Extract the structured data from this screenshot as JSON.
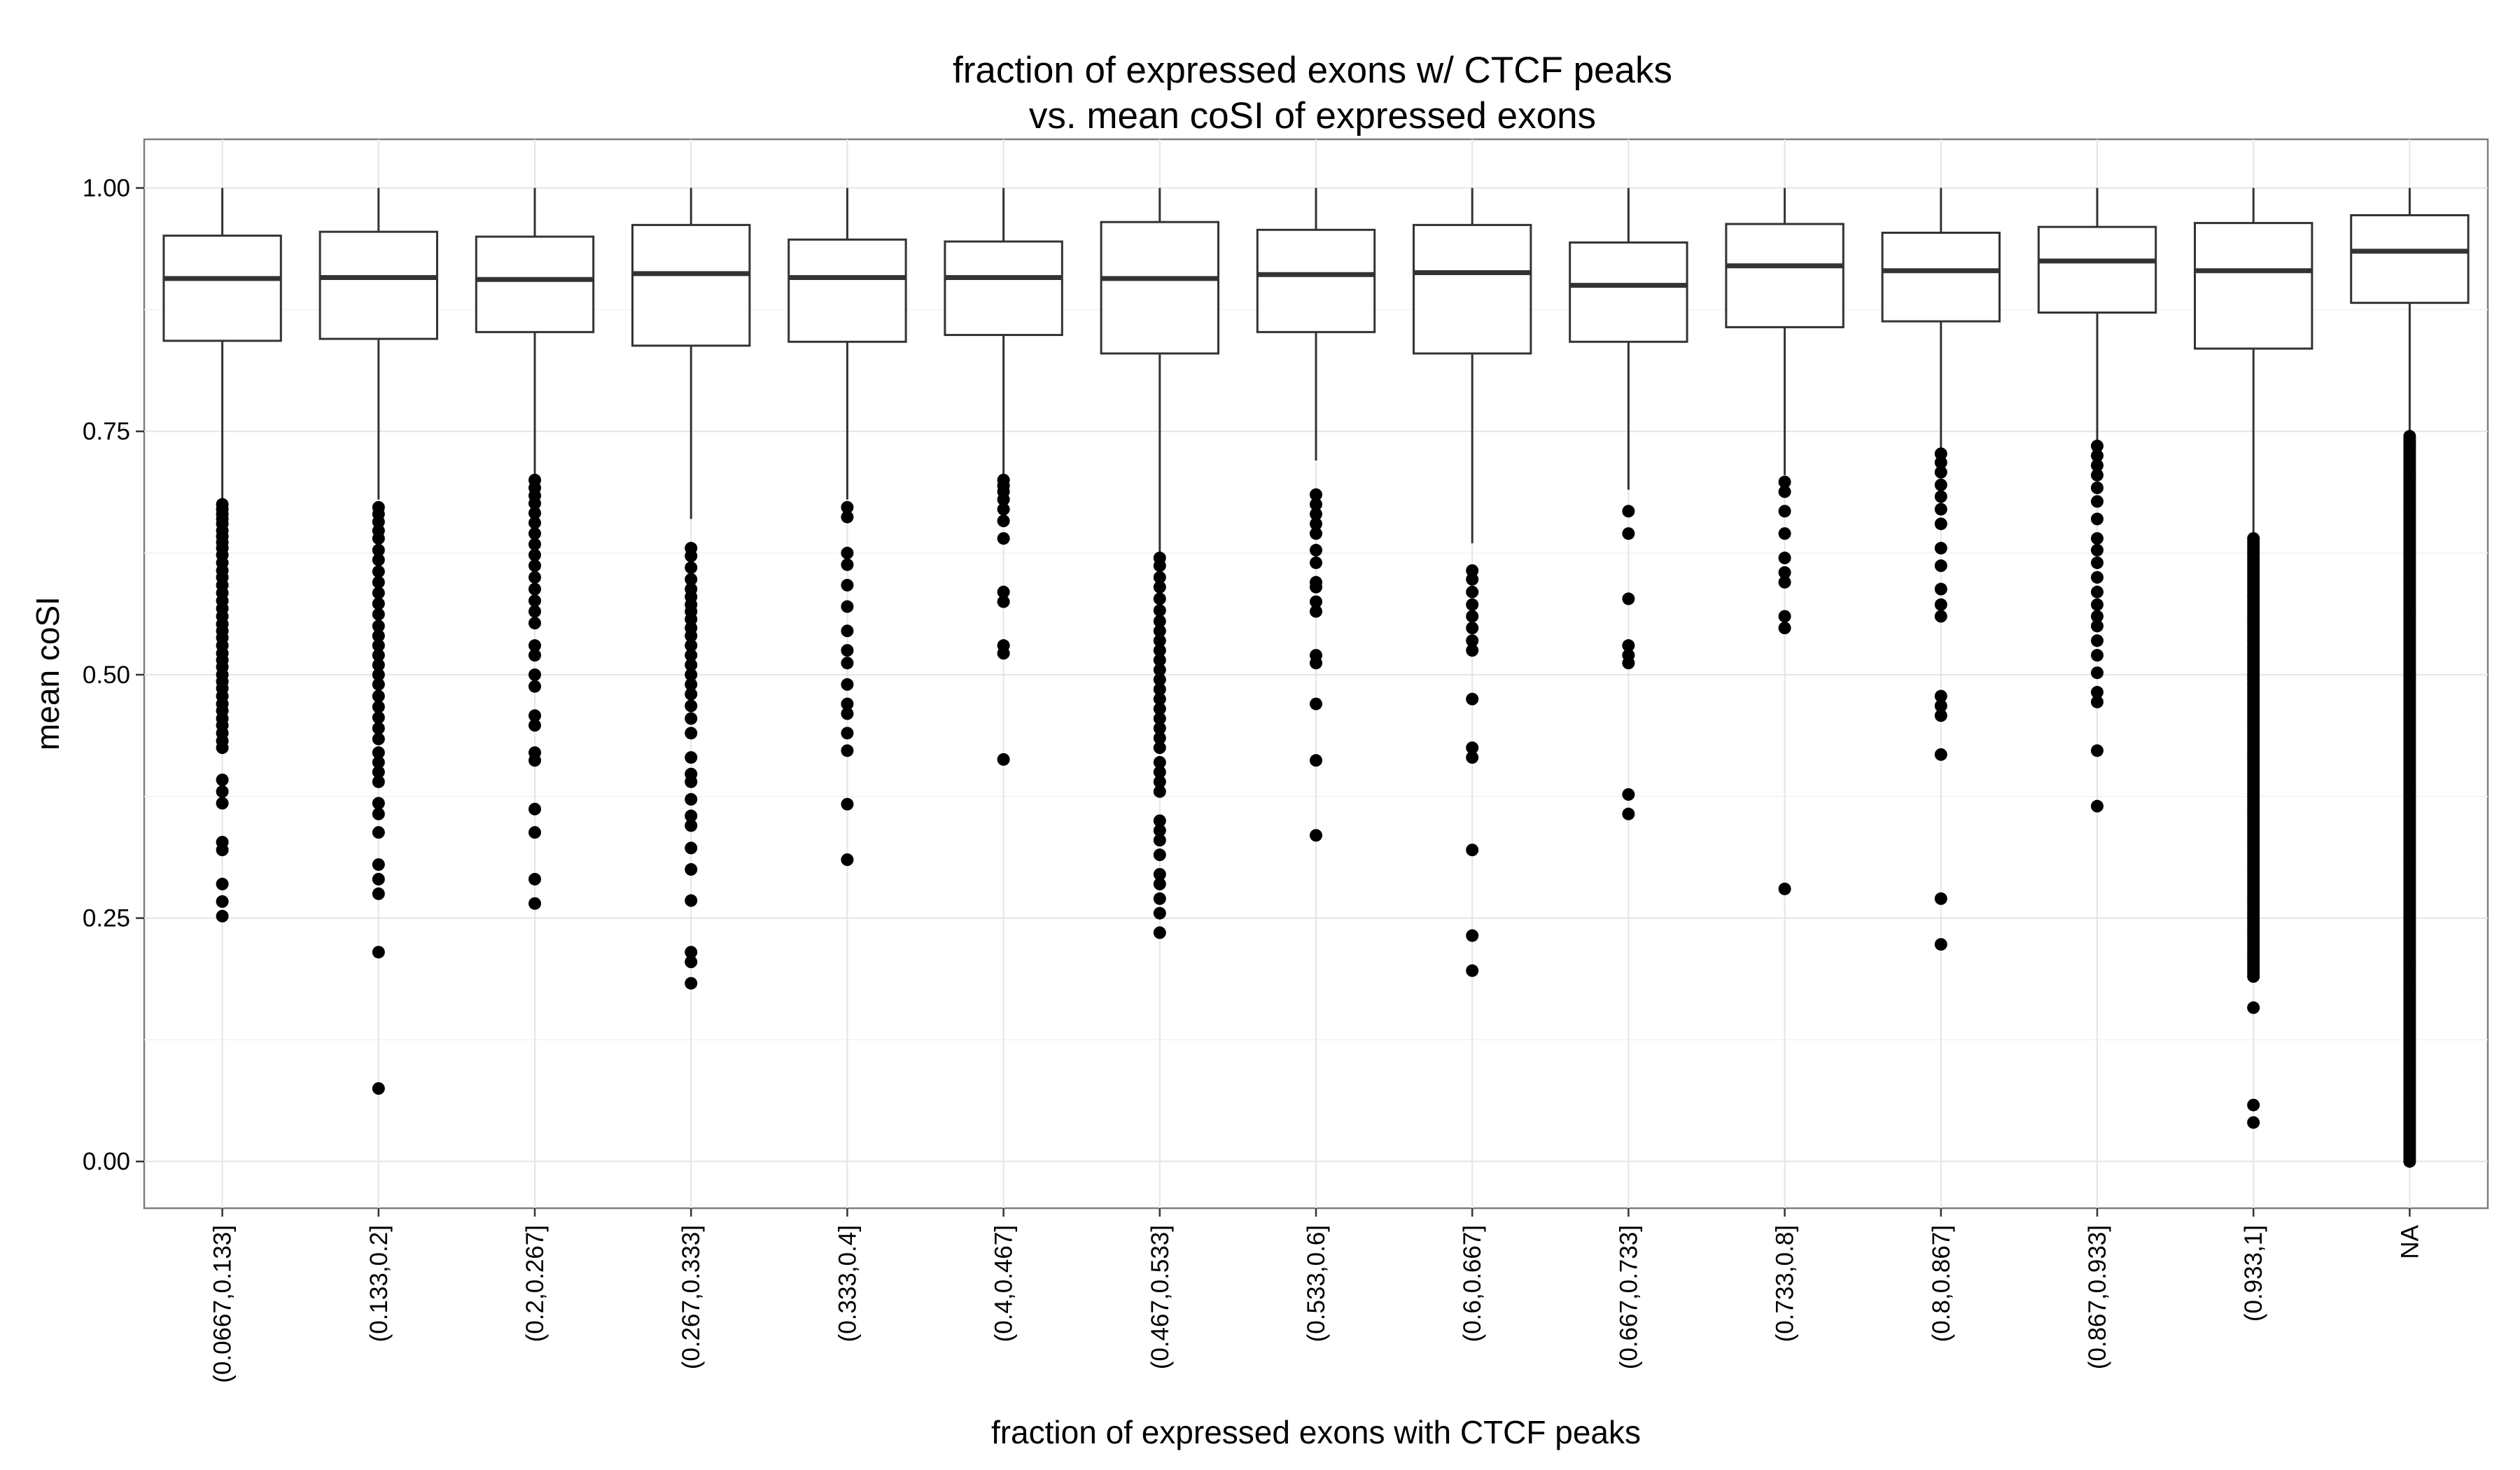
{
  "chart_data": {
    "type": "box",
    "title_line1": "fraction of expressed exons w/ CTCF peaks",
    "title_line2": "vs. mean coSI of expressed exons",
    "xlabel": "fraction of expressed exons with CTCF peaks",
    "ylabel": "mean coSI",
    "ylim": [
      -0.048,
      1.05
    ],
    "yticks": [
      {
        "value": 0.0,
        "label": "0.00"
      },
      {
        "value": 0.25,
        "label": "0.25"
      },
      {
        "value": 0.5,
        "label": "0.50"
      },
      {
        "value": 0.75,
        "label": "0.75"
      },
      {
        "value": 1.0,
        "label": "1.00"
      }
    ],
    "grid": true,
    "series": [
      {
        "category": "(0.0667,0.133]",
        "whisker_low": 0.677,
        "q1": 0.843,
        "median": 0.907,
        "q3": 0.951,
        "whisker_high": 1.0,
        "outliers": [
          0.675,
          0.67,
          0.665,
          0.66,
          0.655,
          0.648,
          0.642,
          0.636,
          0.63,
          0.623,
          0.615,
          0.607,
          0.6,
          0.592,
          0.584,
          0.576,
          0.568,
          0.56,
          0.552,
          0.545,
          0.538,
          0.53,
          0.522,
          0.515,
          0.508,
          0.5,
          0.493,
          0.486,
          0.478,
          0.47,
          0.463,
          0.455,
          0.448,
          0.44,
          0.432,
          0.425,
          0.392,
          0.38,
          0.368,
          0.328,
          0.32,
          0.285,
          0.267,
          0.252
        ]
      },
      {
        "category": "(0.133,0.2]",
        "whisker_low": 0.68,
        "q1": 0.845,
        "median": 0.908,
        "q3": 0.955,
        "whisker_high": 1.0,
        "outliers": [
          0.672,
          0.665,
          0.657,
          0.648,
          0.64,
          0.628,
          0.618,
          0.606,
          0.595,
          0.584,
          0.573,
          0.562,
          0.55,
          0.54,
          0.53,
          0.52,
          0.51,
          0.5,
          0.49,
          0.478,
          0.467,
          0.456,
          0.445,
          0.434,
          0.42,
          0.41,
          0.4,
          0.39,
          0.368,
          0.357,
          0.338,
          0.305,
          0.29,
          0.275,
          0.215,
          0.075
        ]
      },
      {
        "category": "(0.2,0.267]",
        "whisker_low": 0.705,
        "q1": 0.852,
        "median": 0.906,
        "q3": 0.95,
        "whisker_high": 1.0,
        "outliers": [
          0.7,
          0.692,
          0.684,
          0.676,
          0.666,
          0.656,
          0.645,
          0.634,
          0.623,
          0.612,
          0.6,
          0.588,
          0.576,
          0.565,
          0.553,
          0.53,
          0.52,
          0.5,
          0.488,
          0.458,
          0.448,
          0.42,
          0.412,
          0.362,
          0.338,
          0.29,
          0.265
        ]
      },
      {
        "category": "(0.267,0.333]",
        "whisker_low": 0.66,
        "q1": 0.838,
        "median": 0.912,
        "q3": 0.962,
        "whisker_high": 1.0,
        "outliers": [
          0.63,
          0.622,
          0.61,
          0.598,
          0.588,
          0.58,
          0.572,
          0.565,
          0.557,
          0.548,
          0.54,
          0.53,
          0.52,
          0.51,
          0.5,
          0.49,
          0.48,
          0.468,
          0.455,
          0.44,
          0.415,
          0.398,
          0.39,
          0.372,
          0.355,
          0.345,
          0.322,
          0.3,
          0.268,
          0.215,
          0.205,
          0.183
        ]
      },
      {
        "category": "(0.333,0.4]",
        "whisker_low": 0.68,
        "q1": 0.842,
        "median": 0.908,
        "q3": 0.947,
        "whisker_high": 1.0,
        "outliers": [
          0.672,
          0.662,
          0.625,
          0.613,
          0.592,
          0.57,
          0.545,
          0.525,
          0.512,
          0.49,
          0.47,
          0.46,
          0.44,
          0.422,
          0.367,
          0.31
        ]
      },
      {
        "category": "(0.4,0.467]",
        "whisker_low": 0.705,
        "q1": 0.849,
        "median": 0.908,
        "q3": 0.945,
        "whisker_high": 1.0,
        "outliers": [
          0.7,
          0.694,
          0.688,
          0.68,
          0.67,
          0.658,
          0.64,
          0.585,
          0.575,
          0.53,
          0.522,
          0.413
        ]
      },
      {
        "category": "(0.467,0.533]",
        "whisker_low": 0.625,
        "q1": 0.83,
        "median": 0.907,
        "q3": 0.965,
        "whisker_high": 1.0,
        "outliers": [
          0.62,
          0.612,
          0.6,
          0.59,
          0.578,
          0.566,
          0.555,
          0.545,
          0.535,
          0.525,
          0.515,
          0.505,
          0.495,
          0.485,
          0.475,
          0.465,
          0.455,
          0.445,
          0.435,
          0.425,
          0.41,
          0.4,
          0.39,
          0.38,
          0.35,
          0.34,
          0.33,
          0.315,
          0.295,
          0.285,
          0.27,
          0.255,
          0.235
        ]
      },
      {
        "category": "(0.533,0.6]",
        "whisker_low": 0.72,
        "q1": 0.852,
        "median": 0.911,
        "q3": 0.957,
        "whisker_high": 1.0,
        "outliers": [
          0.685,
          0.675,
          0.665,
          0.655,
          0.645,
          0.628,
          0.615,
          0.595,
          0.59,
          0.575,
          0.565,
          0.52,
          0.512,
          0.47,
          0.412,
          0.335
        ]
      },
      {
        "category": "(0.6,0.667]",
        "whisker_low": 0.635,
        "q1": 0.83,
        "median": 0.913,
        "q3": 0.962,
        "whisker_high": 1.0,
        "outliers": [
          0.607,
          0.598,
          0.585,
          0.572,
          0.56,
          0.548,
          0.535,
          0.525,
          0.475,
          0.425,
          0.415,
          0.32,
          0.232,
          0.196
        ]
      },
      {
        "category": "(0.667,0.733]",
        "whisker_low": 0.69,
        "q1": 0.842,
        "median": 0.9,
        "q3": 0.944,
        "whisker_high": 1.0,
        "outliers": [
          0.668,
          0.645,
          0.578,
          0.53,
          0.52,
          0.512,
          0.377,
          0.357
        ]
      },
      {
        "category": "(0.733,0.8]",
        "whisker_low": 0.705,
        "q1": 0.857,
        "median": 0.92,
        "q3": 0.963,
        "whisker_high": 1.0,
        "outliers": [
          0.698,
          0.688,
          0.668,
          0.645,
          0.62,
          0.605,
          0.595,
          0.56,
          0.548,
          0.28
        ]
      },
      {
        "category": "(0.8,0.867]",
        "whisker_low": 0.73,
        "q1": 0.863,
        "median": 0.915,
        "q3": 0.954,
        "whisker_high": 1.0,
        "outliers": [
          0.727,
          0.718,
          0.708,
          0.695,
          0.683,
          0.67,
          0.655,
          0.63,
          0.612,
          0.588,
          0.572,
          0.56,
          0.478,
          0.468,
          0.458,
          0.418,
          0.27,
          0.223
        ]
      },
      {
        "category": "(0.867,0.933]",
        "whisker_low": 0.74,
        "q1": 0.872,
        "median": 0.925,
        "q3": 0.96,
        "whisker_high": 1.0,
        "outliers": [
          0.735,
          0.725,
          0.715,
          0.705,
          0.692,
          0.678,
          0.66,
          0.64,
          0.628,
          0.615,
          0.6,
          0.585,
          0.572,
          0.56,
          0.55,
          0.535,
          0.52,
          0.502,
          0.482,
          0.472,
          0.422,
          0.365
        ]
      },
      {
        "category": "(0.933,1]",
        "whisker_low": 0.645,
        "q1": 0.835,
        "median": 0.915,
        "q3": 0.964,
        "whisker_high": 1.0,
        "dense_outliers": {
          "from": 0.19,
          "to": 0.64,
          "count": 150
        },
        "outliers": [
          0.158,
          0.058,
          0.04
        ]
      },
      {
        "category": "NA",
        "whisker_low": 0.75,
        "q1": 0.882,
        "median": 0.935,
        "q3": 0.972,
        "whisker_high": 1.0,
        "dense_outliers": {
          "from": 0.0,
          "to": 0.745,
          "count": 300
        },
        "outliers": []
      }
    ]
  }
}
